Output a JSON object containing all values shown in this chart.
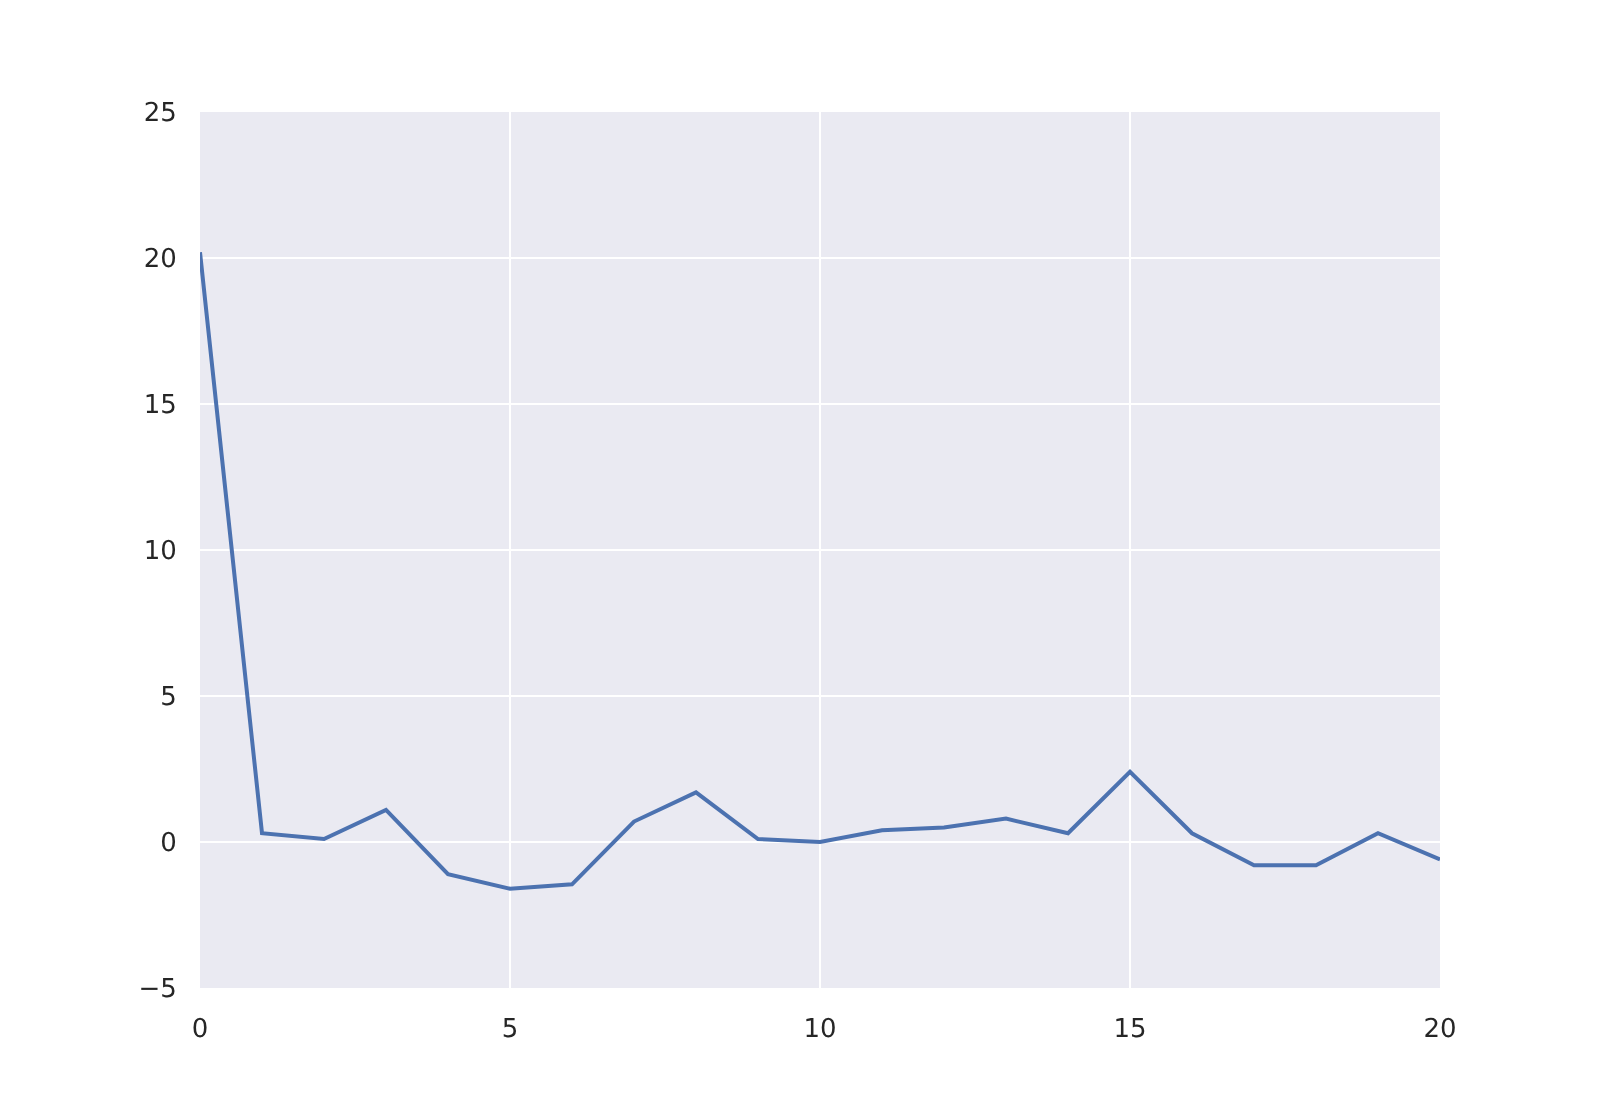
{
  "chart_data": {
    "type": "line",
    "x": [
      0,
      1,
      2,
      3,
      4,
      5,
      6,
      7,
      8,
      9,
      10,
      11,
      12,
      13,
      14,
      15,
      16,
      17,
      18,
      19,
      20
    ],
    "series": [
      {
        "color": "#4c72b0",
        "values": [
          20.2,
          0.3,
          0.1,
          1.1,
          -1.1,
          -1.6,
          -1.45,
          0.7,
          1.7,
          0.1,
          0.0,
          0.4,
          0.5,
          0.8,
          0.3,
          2.4,
          0.3,
          -0.8,
          -0.8,
          0.3,
          -0.6
        ]
      }
    ],
    "xlim": [
      0,
      20
    ],
    "xticks": [
      0,
      5,
      10,
      15,
      20
    ],
    "ylim": [
      -5,
      25
    ],
    "yticks": [
      {
        "value": -5,
        "label": "−5"
      },
      0,
      5,
      10,
      15,
      20,
      25
    ],
    "grid": true,
    "marker": "none",
    "line_style": "solid"
  }
}
